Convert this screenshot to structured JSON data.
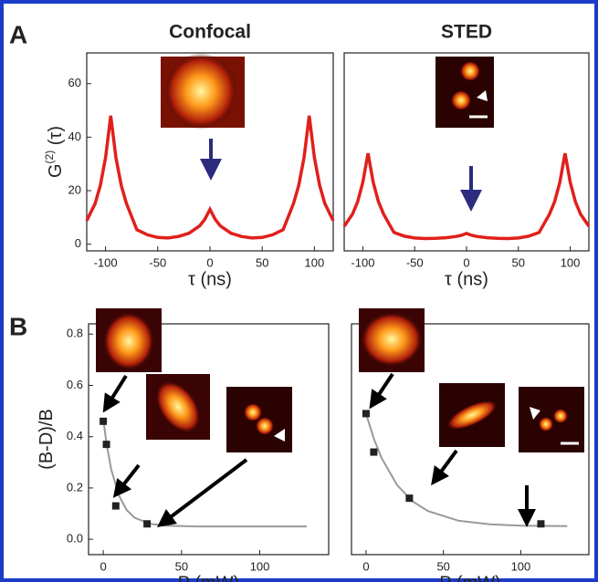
{
  "chart_data": [
    {
      "type": "line",
      "panel_label": "A",
      "title": "Confocal",
      "xlabel": "τ (ns)",
      "ylabel": [
        "G",
        "(2)",
        " (τ)"
      ],
      "xlim": [
        -118,
        118
      ],
      "ylim": [
        -2.5,
        71.5
      ],
      "xticks": [
        -100,
        -50,
        0,
        50,
        100
      ],
      "yticks": [
        0,
        20,
        40,
        60
      ],
      "series": [
        {
          "type": "line",
          "color": "#e0201b",
          "x": [
            -118,
            -110,
            -105,
            -100,
            -95,
            -90,
            -85,
            -80,
            -70,
            -60,
            -50,
            -40,
            -30,
            -20,
            -10,
            -5,
            0,
            5,
            10,
            20,
            30,
            40,
            50,
            60,
            70,
            80,
            85,
            90,
            95,
            100,
            105,
            110,
            118
          ],
          "values": [
            8.8,
            15.2,
            22,
            32.3,
            48,
            32.3,
            22,
            15.2,
            5.4,
            3.5,
            2.5,
            2.3,
            2.9,
            4.1,
            6.8,
            9.3,
            13,
            9.3,
            6.8,
            4.1,
            2.9,
            2.3,
            2.5,
            3.5,
            5.4,
            15.2,
            22,
            32.3,
            48,
            32.3,
            22,
            15.2,
            8.8
          ]
        }
      ]
    },
    {
      "type": "line",
      "title": "STED",
      "xlabel": "τ (ns)",
      "xlim": [
        -118,
        118
      ],
      "ylim": [
        -2.5,
        71.5
      ],
      "xticks": [
        -100,
        -50,
        0,
        50,
        100
      ],
      "series": [
        {
          "type": "line",
          "color": "#e0201b",
          "x": [
            -118,
            -110,
            -105,
            -100,
            -95,
            -90,
            -85,
            -80,
            -70,
            -60,
            -50,
            -40,
            -30,
            -20,
            -10,
            -5,
            0,
            5,
            10,
            20,
            30,
            40,
            50,
            60,
            70,
            80,
            85,
            90,
            95,
            100,
            105,
            110,
            118
          ],
          "values": [
            6.7,
            11.2,
            15.9,
            23.1,
            34,
            23.1,
            15.9,
            11.2,
            4.4,
            3,
            2.3,
            2.1,
            2.2,
            2.4,
            2.9,
            3.3,
            4,
            3.3,
            2.9,
            2.4,
            2.2,
            2.1,
            2.3,
            3,
            4.4,
            11.2,
            15.9,
            23.1,
            34,
            23.1,
            15.9,
            11.2,
            6.7
          ]
        }
      ]
    },
    {
      "type": "line",
      "panel_label": "B",
      "xlabel": "P (mW)",
      "ylabel": [
        "(B-D)/B"
      ],
      "xlim": [
        -9.4,
        144
      ],
      "ylim": [
        -0.06,
        0.84
      ],
      "xticks": [
        0,
        50,
        100
      ],
      "yticks": [
        {
          "value": 0,
          "label": "0.0"
        },
        0.2,
        0.4,
        0.6,
        0.8
      ],
      "series": [
        {
          "type": "line",
          "color": "#999999",
          "x": [
            0,
            2,
            5,
            10,
            15,
            20,
            30,
            40,
            60,
            80,
            100,
            130
          ],
          "values": [
            0.47,
            0.377,
            0.274,
            0.17,
            0.114,
            0.084,
            0.06,
            0.053,
            0.05,
            0.05,
            0.05,
            0.05
          ]
        },
        {
          "type": "scatter",
          "color": "#222222",
          "x": [
            0,
            2,
            8,
            28
          ],
          "values": [
            0.46,
            0.37,
            0.13,
            0.06
          ]
        }
      ]
    },
    {
      "type": "line",
      "xlabel": "P (mW)",
      "xlim": [
        -9.4,
        144
      ],
      "ylim": [
        -0.06,
        0.84
      ],
      "xticks": [
        0,
        50,
        100
      ],
      "series": [
        {
          "type": "line",
          "color": "#999999",
          "x": [
            0,
            5,
            10,
            20,
            30,
            40,
            60,
            80,
            100,
            130
          ],
          "values": [
            0.49,
            0.393,
            0.317,
            0.212,
            0.148,
            0.11,
            0.072,
            0.058,
            0.053,
            0.051
          ]
        },
        {
          "type": "scatter",
          "color": "#222222",
          "x": [
            0,
            5,
            28,
            113
          ],
          "values": [
            0.49,
            0.34,
            0.16,
            0.06
          ]
        }
      ]
    }
  ]
}
